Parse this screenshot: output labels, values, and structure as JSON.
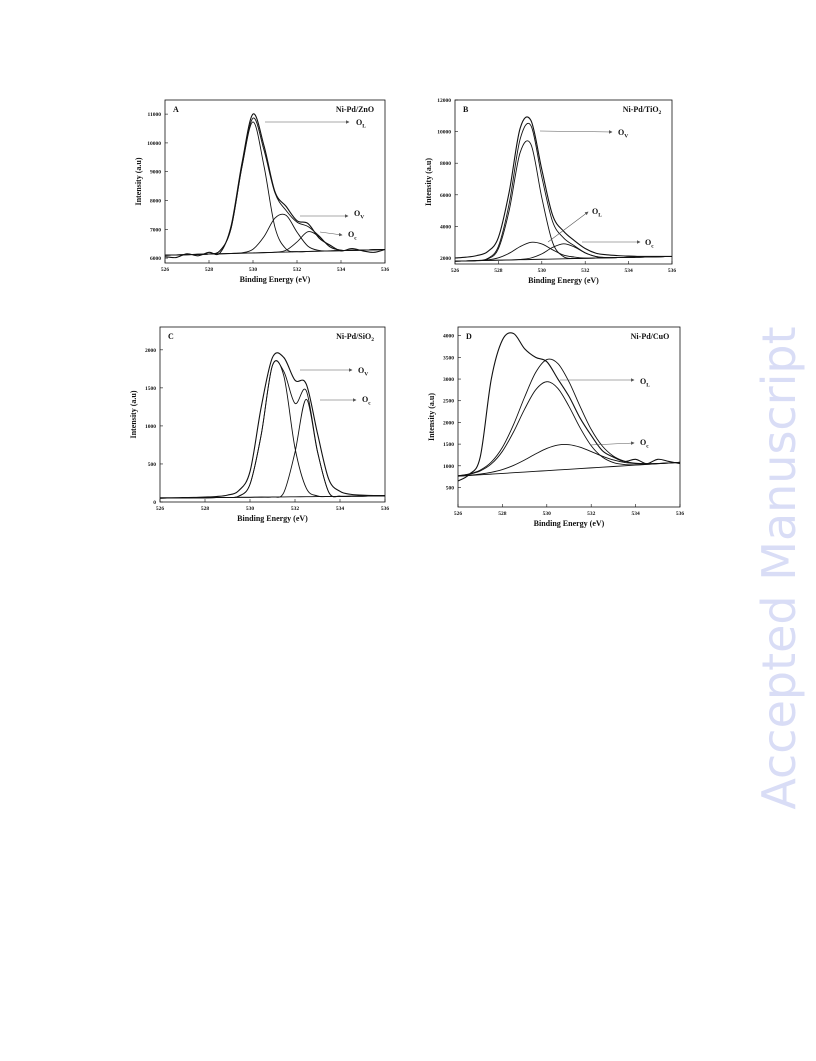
{
  "watermark": "Accepted Manuscript",
  "chart_data": [
    {
      "type": "line",
      "panel": "A",
      "title": "Ni-Pd/ZnO",
      "xlabel": "Binding Energy (eV)",
      "ylabel": "Intensity (a.u)",
      "x": [
        526,
        526.5,
        527,
        527.5,
        528,
        528.5,
        529,
        529.5,
        530,
        530.5,
        531,
        531.5,
        532,
        532.5,
        533,
        533.5,
        534,
        534.5,
        535,
        535.5,
        536
      ],
      "xlim": [
        526,
        536
      ],
      "xticks": [
        526,
        528,
        530,
        532,
        534,
        536
      ],
      "ylim": [
        5830,
        11490
      ],
      "yticks": [
        6000,
        7000,
        8000,
        9000,
        10000,
        11000
      ],
      "series": [
        {
          "color": "#111111",
          "values": [
            6050,
            6020,
            6150,
            6080,
            6200,
            6180,
            7100,
            9300,
            11000,
            9900,
            8300,
            7800,
            7300,
            7200,
            6700,
            6450,
            6250,
            6330,
            6250,
            6200,
            6300
          ]
        },
        {
          "color": "#111111",
          "values": [
            6100,
            6110,
            6120,
            6130,
            6146,
            6259,
            7026,
            9188,
            10859,
            9748,
            8260,
            7658,
            7250,
            7098,
            6772,
            6391,
            6274,
            6270,
            6280,
            6290,
            6300
          ]
        },
        {
          "color": "#111111",
          "values": [
            6100,
            6110,
            6120,
            6130,
            6146,
            6259,
            7025,
            9173,
            10730,
            9193,
            7065,
            6319,
            6226,
            6230,
            6240,
            6250,
            6260,
            6270,
            6280,
            6290,
            6300
          ]
        },
        {
          "color": "#111111",
          "values": [
            6100,
            6110,
            6120,
            6130,
            6140,
            6150,
            6161,
            6185,
            6309,
            6745,
            7391,
            7487,
            6903,
            6412,
            6264,
            6252,
            6260,
            6270,
            6280,
            6290,
            6300
          ]
        },
        {
          "color": "#111111",
          "values": [
            6100,
            6110,
            6120,
            6130,
            6140,
            6150,
            6160,
            6170,
            6180,
            6190,
            6204,
            6272,
            6561,
            6916,
            6748,
            6389,
            6274,
            6270,
            6280,
            6290,
            6300
          ]
        },
        {
          "color": "#111111",
          "values": [
            6100,
            6110,
            6120,
            6130,
            6140,
            6150,
            6160,
            6170,
            6180,
            6190,
            6200,
            6210,
            6220,
            6230,
            6240,
            6250,
            6260,
            6270,
            6280,
            6290,
            6300
          ]
        }
      ],
      "annotations": [
        {
          "text": "O",
          "sub": "L"
        },
        {
          "text": "O",
          "sub": "V"
        },
        {
          "text": "O",
          "sub": "c"
        }
      ]
    },
    {
      "type": "line",
      "panel": "B",
      "title": "Ni-Pd/TiO",
      "title_sub": "2",
      "xlabel": "Binding Energy (eV)",
      "ylabel": "Intensity (a.u)",
      "x": [
        526,
        526.5,
        527,
        527.5,
        528,
        528.5,
        529,
        529.5,
        530,
        530.5,
        531,
        531.5,
        532,
        532.5,
        533,
        533.5,
        534,
        534.5,
        535,
        535.5,
        536
      ],
      "xlim": [
        526,
        536
      ],
      "xticks": [
        526,
        528,
        530,
        532,
        534,
        536
      ],
      "ylim": [
        1620,
        12000
      ],
      "yticks": [
        2000,
        4000,
        6000,
        8000,
        10000,
        12000
      ],
      "series": [
        {
          "color": "#111111",
          "values": [
            2000,
            2050,
            2150,
            2400,
            3300,
            6200,
            10200,
            10700,
            7600,
            4700,
            3700,
            3100,
            2600,
            2300,
            2200,
            2150,
            2120,
            2100,
            2100,
            2100,
            2100
          ]
        },
        {
          "color": "#111111",
          "values": [
            1800,
            1815,
            1841,
            1965,
            2739,
            5460,
            9513,
            10375,
            7129,
            4295,
            3277,
            2776,
            2334,
            2090,
            2026,
            2025,
            2040,
            2055,
            2070,
            2085,
            2100
          ]
        },
        {
          "color": "#111111",
          "values": [
            1800,
            1815,
            1835,
            1930,
            2590,
            5032,
            8666,
            9189,
            5816,
            2975,
            2089,
            1974,
            1980,
            1995,
            2010,
            2025,
            2040,
            2055,
            2070,
            2085,
            2100
          ]
        },
        {
          "color": "#111111",
          "values": [
            1800,
            1815,
            1836,
            1880,
            2009,
            2303,
            2721,
            2996,
            2891,
            2519,
            2188,
            2061,
            1992,
            1995,
            2010,
            2025,
            2040,
            2055,
            2070,
            2085,
            2100
          ]
        },
        {
          "color": "#111111",
          "values": [
            1800,
            1815,
            1830,
            1845,
            1860,
            1875,
            1906,
            2000,
            2262,
            2671,
            2900,
            2701,
            2322,
            2090,
            2026,
            2025,
            2040,
            2055,
            2070,
            2085,
            2100
          ]
        },
        {
          "color": "#111111",
          "values": [
            1800,
            1815,
            1830,
            1845,
            1860,
            1875,
            1890,
            1905,
            1920,
            1935,
            1950,
            1965,
            1980,
            1995,
            2010,
            2025,
            2040,
            2055,
            2070,
            2085,
            2100
          ]
        }
      ],
      "annotations": [
        {
          "text": "O",
          "sub": "V"
        },
        {
          "text": "O",
          "sub": "L"
        },
        {
          "text": "O",
          "sub": "c"
        }
      ]
    },
    {
      "type": "line",
      "panel": "C",
      "title": "Ni-Pd/SiO",
      "title_sub": "2",
      "xlabel": "Binding Energy (eV)",
      "ylabel": "Intensity (a.u)",
      "x": [
        526,
        526.5,
        527,
        527.5,
        528,
        528.5,
        529,
        529.5,
        530,
        530.5,
        531,
        531.5,
        532,
        532.5,
        533,
        533.5,
        534,
        534.5,
        535,
        535.5,
        536
      ],
      "xlim": [
        526,
        536
      ],
      "xticks": [
        526,
        528,
        530,
        532,
        534,
        536
      ],
      "ylim": [
        0,
        2300
      ],
      "yticks": [
        0,
        500,
        1000,
        1500,
        2000
      ],
      "series": [
        {
          "color": "#111111",
          "values": [
            55,
            56,
            58,
            60,
            65,
            72,
            90,
            150,
            400,
            1250,
            1900,
            1900,
            1600,
            1550,
            900,
            300,
            140,
            100,
            90,
            85,
            85
          ]
        },
        {
          "color": "#111111",
          "values": [
            50,
            52,
            53,
            55,
            56,
            58,
            60,
            77,
            233,
            887,
            1797,
            1717,
            1296,
            1463,
            666,
            129,
            75,
            76,
            77,
            79,
            80
          ]
        },
        {
          "color": "#111111",
          "values": [
            50,
            52,
            53,
            55,
            56,
            58,
            60,
            77,
            233,
            887,
            1796,
            1661,
            710,
            183,
            80,
            73,
            74,
            76,
            77,
            79,
            80
          ]
        },
        {
          "color": "#111111",
          "values": [
            50,
            52,
            53,
            55,
            56,
            58,
            59,
            61,
            62,
            64,
            66,
            123,
            654,
            1350,
            657,
            129,
            75,
            76,
            77,
            79,
            80
          ]
        },
        {
          "color": "#111111",
          "values": [
            50,
            52,
            53,
            55,
            56,
            58,
            59,
            61,
            62,
            64,
            65,
            67,
            68,
            70,
            71,
            73,
            74,
            76,
            77,
            79,
            80
          ]
        }
      ],
      "annotations": [
        {
          "text": "O",
          "sub": "V"
        },
        {
          "text": "O",
          "sub": "c"
        }
      ]
    },
    {
      "type": "line",
      "panel": "D",
      "title": "Ni-Pd/CuO",
      "xlabel": "Binding Energy (eV)",
      "ylabel": "Intensity (a.u)",
      "x": [
        526,
        526.5,
        527,
        527.5,
        528,
        528.5,
        529,
        529.5,
        530,
        530.5,
        531,
        531.5,
        532,
        532.5,
        533,
        533.5,
        534,
        534.5,
        535,
        535.5,
        536
      ],
      "xlim": [
        526,
        536
      ],
      "xticks": [
        526,
        528,
        530,
        532,
        534,
        536
      ],
      "ylim": [
        50,
        4200
      ],
      "yticks": [
        500,
        1000,
        1500,
        2000,
        2500,
        3000,
        3500,
        4000
      ],
      "series": [
        {
          "color": "#111111",
          "values": [
            650,
            800,
            1200,
            3000,
            3900,
            4050,
            3700,
            3500,
            3400,
            3000,
            2600,
            2100,
            1700,
            1350,
            1200,
            1100,
            1150,
            1050,
            1150,
            1100,
            1050
          ]
        },
        {
          "color": "#111111",
          "values": [
            770,
            811,
            900,
            1085,
            1424,
            1948,
            2583,
            3154,
            3450,
            3358,
            2936,
            2368,
            1839,
            1456,
            1224,
            1107,
            1060,
            1049,
            1053,
            1066,
            1081
          ]
        },
        {
          "color": "#111111",
          "values": [
            768,
            805,
            882,
            1042,
            1334,
            1779,
            2305,
            2752,
            2938,
            2784,
            2369,
            1875,
            1462,
            1202,
            1074,
            1029,
            1024,
            1034,
            1048,
            1064,
            1080
          ]
        },
        {
          "color": "#111111",
          "values": [
            762,
            782,
            810,
            851,
            914,
            1009,
            1134,
            1274,
            1400,
            1478,
            1487,
            1429,
            1329,
            1222,
            1134,
            1078,
            1052,
            1047,
            1053,
            1066,
            1081
          ]
        },
        {
          "color": "#111111",
          "values": [
            760,
            776,
            792,
            808,
            824,
            840,
            856,
            872,
            888,
            904,
            920,
            936,
            952,
            968,
            984,
            1000,
            1016,
            1032,
            1048,
            1064,
            1080
          ]
        }
      ],
      "annotations": [
        {
          "text": "O",
          "sub": "L"
        },
        {
          "text": "O",
          "sub": "c"
        }
      ]
    }
  ]
}
